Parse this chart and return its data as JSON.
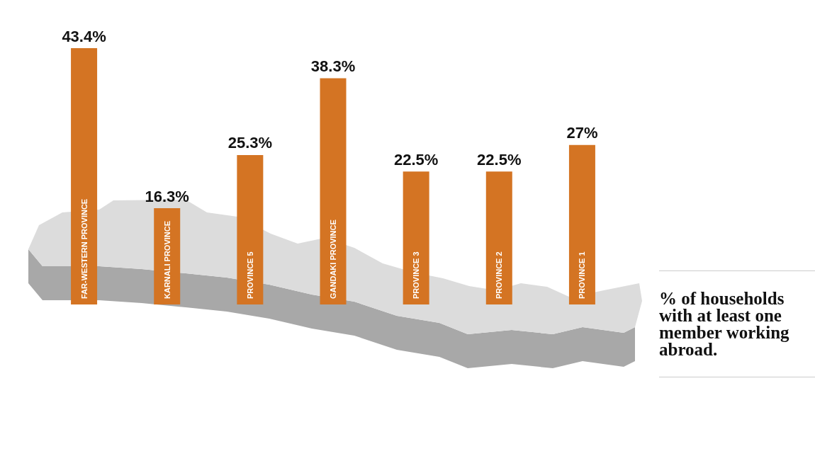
{
  "chart_data": {
    "type": "bar",
    "title": "% of households with at least one member working abroad.",
    "categories": [
      "FAR-WESTERN PROVINCE",
      "KARNALI PROVINCE",
      "PROVINCE 5",
      "GANDAKI PROVINCE",
      "PROVINCE 3",
      "PROVINCE 2",
      "PROVINCE 1"
    ],
    "values": [
      43.4,
      16.3,
      25.3,
      38.3,
      22.5,
      22.5,
      27
    ],
    "value_labels": [
      "43.4%",
      "16.3%",
      "25.3%",
      "38.3%",
      "22.5%",
      "22.5%",
      "27%"
    ],
    "color": "#d47423",
    "tick_labels": "x"
  }
}
